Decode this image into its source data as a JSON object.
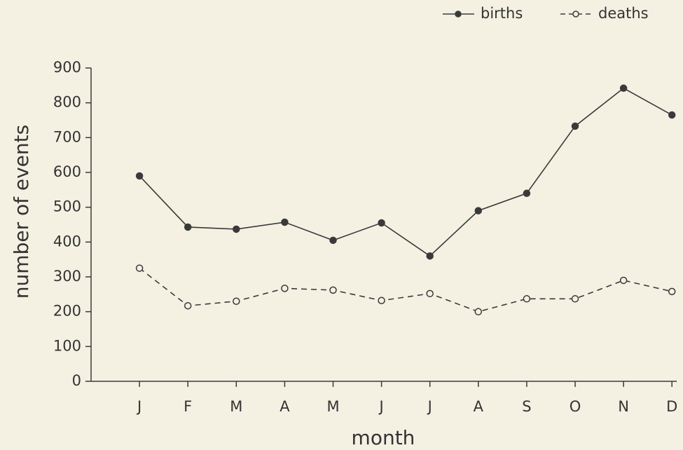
{
  "chart_data": {
    "type": "line",
    "xlabel": "month",
    "ylabel": "number of events",
    "categories": [
      "J",
      "F",
      "M",
      "A",
      "M",
      "J",
      "J",
      "A",
      "S",
      "O",
      "N",
      "D"
    ],
    "series": [
      {
        "name": "births",
        "color": "#3a3a3a",
        "linestyle": "solid",
        "marker": "filled",
        "values": [
          590,
          443,
          437,
          457,
          405,
          455,
          360,
          490,
          540,
          733,
          842,
          765
        ]
      },
      {
        "name": "deaths",
        "color": "#3a3a3a",
        "linestyle": "dashed",
        "marker": "open",
        "values": [
          325,
          217,
          230,
          267,
          262,
          232,
          252,
          200,
          237,
          237,
          290,
          258
        ]
      }
    ],
    "ylim": [
      0,
      900
    ],
    "yticks": [
      0,
      100,
      200,
      300,
      400,
      500,
      600,
      700,
      800,
      900
    ],
    "grid": false,
    "legend": "upper right"
  }
}
